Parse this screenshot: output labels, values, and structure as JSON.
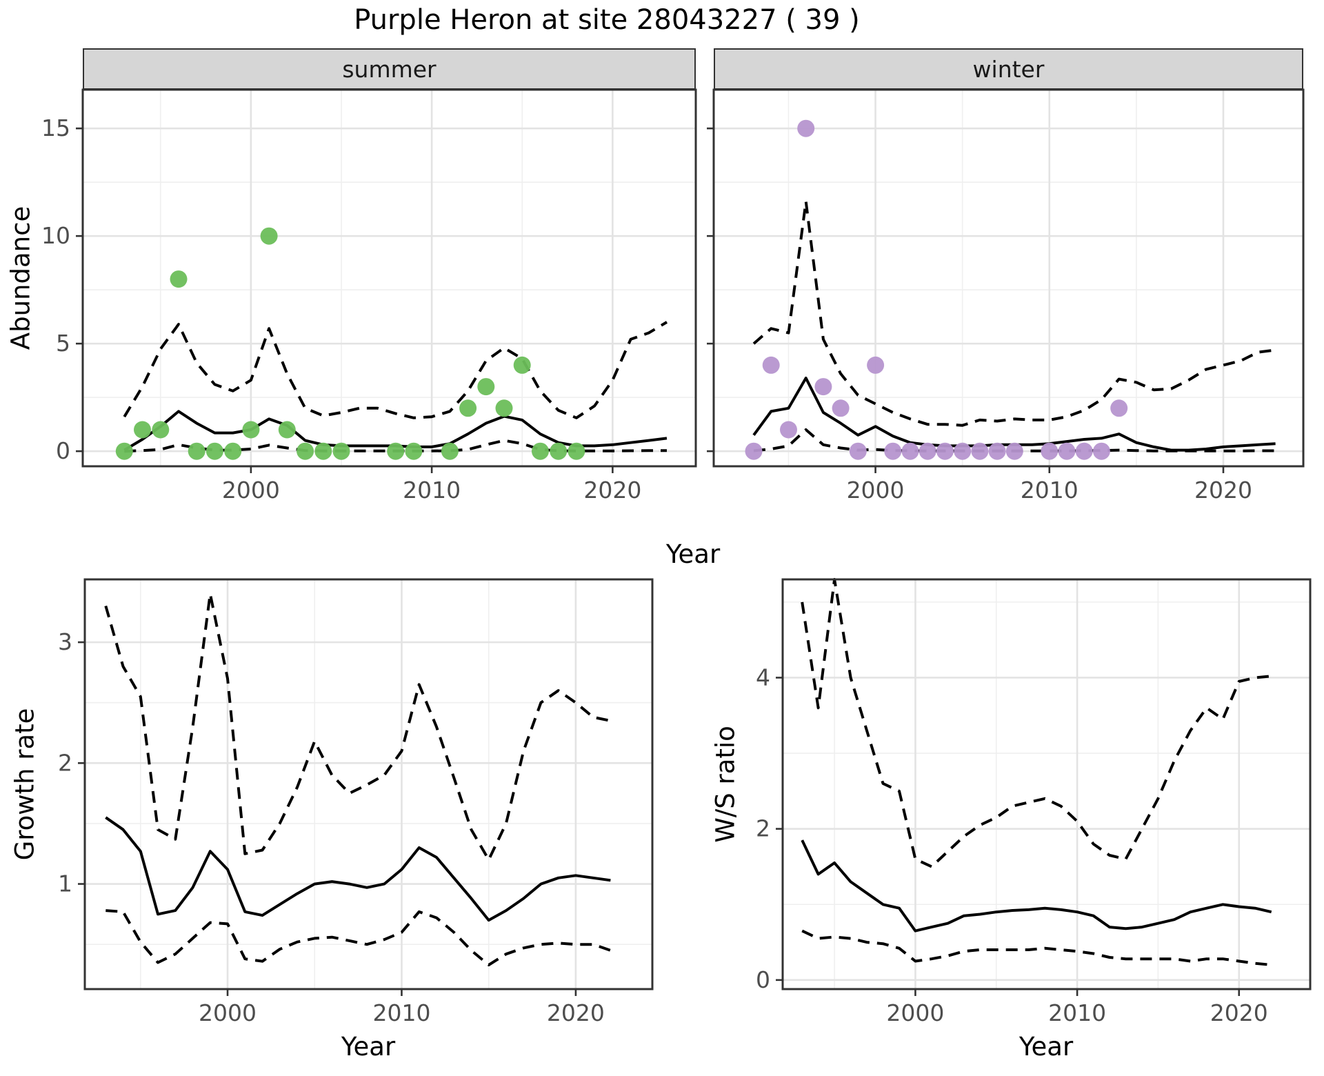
{
  "title": "Purple Heron at site 28043227 ( 39 )",
  "labels": {
    "facet_summer": "summer",
    "facet_winter": "winter",
    "abundance_y": "Abundance",
    "top_x": "Year",
    "growth_y": "Growth rate",
    "growth_x": "Year",
    "ws_y": "W/S ratio",
    "ws_x": "Year"
  },
  "colors": {
    "summer_point": "#6CBE5A",
    "winter_point": "#B695CF",
    "line": "#000000",
    "grid_major": "#e3e3e3",
    "grid_minor": "#efefef",
    "panel_border": "#333333",
    "tick_label": "#4d4d4d",
    "strip_bg": "#d6d6d6"
  },
  "chart_data": [
    {
      "id": "abundance-summer",
      "type": "line",
      "title": "summer",
      "xlabel": "Year",
      "ylabel": "Abundance",
      "xlim": [
        1990.7,
        2024.6
      ],
      "ylim": [
        -0.7,
        16.8
      ],
      "xticks": [
        2000,
        2010,
        2020
      ],
      "xminor": [
        1995,
        2005,
        2015
      ],
      "yticks": [
        0,
        5,
        10,
        15
      ],
      "yminor": [
        2.5,
        7.5,
        12.5
      ],
      "show_y_tick_labels": true,
      "years": [
        1993,
        1994,
        1995,
        1996,
        1997,
        1998,
        1999,
        2000,
        2001,
        2002,
        2003,
        2004,
        2005,
        2006,
        2007,
        2008,
        2009,
        2010,
        2011,
        2012,
        2013,
        2014,
        2015,
        2016,
        2017,
        2018,
        2019,
        2020,
        2021,
        2022,
        2023
      ],
      "series": [
        {
          "name": "fit",
          "style": "solid",
          "values": [
            0.05,
            0.55,
            1.15,
            1.85,
            1.3,
            0.85,
            0.85,
            1.0,
            1.5,
            1.2,
            0.5,
            0.3,
            0.25,
            0.25,
            0.25,
            0.25,
            0.2,
            0.2,
            0.35,
            0.8,
            1.3,
            1.62,
            1.45,
            0.8,
            0.4,
            0.25,
            0.25,
            0.3,
            0.4,
            0.5,
            0.6
          ]
        },
        {
          "name": "upper_ci",
          "style": "dashed",
          "values": [
            1.6,
            3.0,
            4.75,
            5.9,
            4.1,
            3.1,
            2.8,
            3.3,
            5.7,
            3.6,
            2.0,
            1.65,
            1.8,
            2.0,
            2.0,
            1.75,
            1.55,
            1.6,
            1.85,
            2.8,
            4.2,
            4.8,
            4.3,
            2.8,
            1.9,
            1.55,
            2.1,
            3.3,
            5.2,
            5.5,
            6.0
          ]
        },
        {
          "name": "lower_ci",
          "style": "dashed",
          "values": [
            0.0,
            0.03,
            0.08,
            0.3,
            0.15,
            0.05,
            0.05,
            0.1,
            0.28,
            0.15,
            0.03,
            0.01,
            0.01,
            0.01,
            0.01,
            0.01,
            0.01,
            0.01,
            0.02,
            0.08,
            0.3,
            0.5,
            0.35,
            0.08,
            0.02,
            0.01,
            0.01,
            0.01,
            0.02,
            0.03,
            0.03
          ]
        }
      ],
      "points": {
        "name": "summer-observations",
        "color": "#6CBE5A",
        "x": [
          1993,
          1994,
          1995,
          1996,
          1997,
          1998,
          1999,
          2000,
          2001,
          2002,
          2003,
          2004,
          2005,
          2008,
          2009,
          2011,
          2012,
          2013,
          2014,
          2015,
          2016,
          2017,
          2018
        ],
        "y": [
          0,
          1,
          1,
          8,
          0,
          0,
          0,
          1,
          10,
          1,
          0,
          0,
          0,
          0,
          0,
          0,
          2,
          3,
          2,
          4,
          0,
          0,
          0
        ]
      }
    },
    {
      "id": "abundance-winter",
      "type": "line",
      "title": "winter",
      "xlabel": "Year",
      "ylabel": "Abundance",
      "xlim": [
        1990.7,
        2024.6
      ],
      "ylim": [
        -0.7,
        16.8
      ],
      "xticks": [
        2000,
        2010,
        2020
      ],
      "xminor": [
        1995,
        2005,
        2015
      ],
      "yticks": [
        0,
        5,
        10,
        15
      ],
      "yminor": [
        2.5,
        7.5,
        12.5
      ],
      "show_y_tick_labels": false,
      "years": [
        1993,
        1994,
        1995,
        1996,
        1997,
        1998,
        1999,
        2000,
        2001,
        2002,
        2003,
        2004,
        2005,
        2006,
        2007,
        2008,
        2009,
        2010,
        2011,
        2012,
        2013,
        2014,
        2015,
        2016,
        2017,
        2018,
        2019,
        2020,
        2021,
        2022,
        2023
      ],
      "series": [
        {
          "name": "fit",
          "style": "solid",
          "values": [
            0.75,
            1.85,
            2.0,
            3.4,
            1.8,
            1.3,
            0.75,
            1.15,
            0.7,
            0.4,
            0.3,
            0.25,
            0.25,
            0.25,
            0.3,
            0.3,
            0.3,
            0.35,
            0.45,
            0.55,
            0.6,
            0.8,
            0.4,
            0.2,
            0.05,
            0.05,
            0.1,
            0.2,
            0.25,
            0.3,
            0.35
          ]
        },
        {
          "name": "upper_ci",
          "style": "dashed",
          "values": [
            5.0,
            5.7,
            5.5,
            11.6,
            5.2,
            3.6,
            2.6,
            2.2,
            1.8,
            1.5,
            1.25,
            1.25,
            1.2,
            1.45,
            1.4,
            1.5,
            1.45,
            1.45,
            1.6,
            1.9,
            2.4,
            3.35,
            3.2,
            2.85,
            2.9,
            3.3,
            3.8,
            4.0,
            4.2,
            4.6,
            4.7
          ]
        },
        {
          "name": "lower_ci",
          "style": "dashed",
          "values": [
            0.02,
            0.1,
            0.25,
            1.0,
            0.3,
            0.15,
            0.05,
            0.08,
            0.03,
            0.02,
            0.01,
            0.01,
            0.01,
            0.01,
            0.01,
            0.01,
            0.01,
            0.01,
            0.01,
            0.02,
            0.03,
            0.05,
            0.03,
            0.01,
            0.01,
            0.01,
            0.01,
            0.01,
            0.01,
            0.02,
            0.02
          ]
        }
      ],
      "points": {
        "name": "winter-observations",
        "color": "#B695CF",
        "x": [
          1993,
          1994,
          1995,
          1996,
          1997,
          1998,
          1999,
          2000,
          2001,
          2002,
          2003,
          2004,
          2005,
          2006,
          2007,
          2008,
          2010,
          2011,
          2012,
          2013,
          2014
        ],
        "y": [
          0,
          4,
          1,
          15,
          3,
          2,
          0,
          4,
          0,
          0,
          0,
          0,
          0,
          0,
          0,
          0,
          0,
          0,
          0,
          0,
          2
        ]
      }
    },
    {
      "id": "growth-rate",
      "type": "line",
      "title": "",
      "xlabel": "Year",
      "ylabel": "Growth rate",
      "xlim": [
        1991.8,
        2024.4
      ],
      "ylim": [
        0.13,
        3.52
      ],
      "xticks": [
        2000,
        2010,
        2020
      ],
      "xminor": [
        1995,
        2005,
        2015
      ],
      "yticks": [
        1,
        2,
        3
      ],
      "yminor": [
        0.5,
        1.5,
        2.5
      ],
      "show_y_tick_labels": true,
      "years": [
        1993,
        1994,
        1995,
        1996,
        1997,
        1998,
        1999,
        2000,
        2001,
        2002,
        2003,
        2004,
        2005,
        2006,
        2007,
        2008,
        2009,
        2010,
        2011,
        2012,
        2013,
        2014,
        2015,
        2016,
        2017,
        2018,
        2019,
        2020,
        2021,
        2022
      ],
      "series": [
        {
          "name": "fit",
          "style": "solid",
          "values": [
            1.55,
            1.45,
            1.27,
            0.75,
            0.78,
            0.97,
            1.27,
            1.12,
            0.77,
            0.74,
            0.83,
            0.92,
            1.0,
            1.02,
            1.0,
            0.97,
            1.0,
            1.12,
            1.3,
            1.22,
            1.05,
            0.88,
            0.7,
            0.78,
            0.88,
            1.0,
            1.05,
            1.07,
            1.05,
            1.03
          ]
        },
        {
          "name": "upper_ci",
          "style": "dashed",
          "values": [
            3.3,
            2.8,
            2.55,
            1.45,
            1.37,
            2.3,
            3.4,
            2.7,
            1.25,
            1.28,
            1.5,
            1.8,
            2.18,
            1.9,
            1.75,
            1.82,
            1.9,
            2.1,
            2.65,
            2.3,
            1.88,
            1.45,
            1.2,
            1.5,
            2.1,
            2.5,
            2.6,
            2.5,
            2.38,
            2.35
          ]
        },
        {
          "name": "lower_ci",
          "style": "dashed",
          "values": [
            0.78,
            0.77,
            0.52,
            0.35,
            0.42,
            0.55,
            0.68,
            0.67,
            0.38,
            0.36,
            0.46,
            0.52,
            0.55,
            0.56,
            0.53,
            0.5,
            0.54,
            0.6,
            0.77,
            0.72,
            0.6,
            0.45,
            0.33,
            0.42,
            0.47,
            0.5,
            0.51,
            0.5,
            0.5,
            0.45
          ]
        }
      ],
      "points": null
    },
    {
      "id": "ws-ratio",
      "type": "line",
      "title": "",
      "xlabel": "Year",
      "ylabel": "W/S ratio",
      "xlim": [
        1991.8,
        2024.4
      ],
      "ylim": [
        -0.12,
        5.3
      ],
      "xticks": [
        2000,
        2010,
        2020
      ],
      "xminor": [
        1995,
        2005,
        2015
      ],
      "yticks": [
        0,
        2,
        4
      ],
      "yminor": [
        1,
        3,
        5
      ],
      "show_y_tick_labels": true,
      "years": [
        1993,
        1994,
        1995,
        1996,
        1997,
        1998,
        1999,
        2000,
        2001,
        2002,
        2003,
        2004,
        2005,
        2006,
        2007,
        2008,
        2009,
        2010,
        2011,
        2012,
        2013,
        2014,
        2015,
        2016,
        2017,
        2018,
        2019,
        2020,
        2021,
        2022
      ],
      "series": [
        {
          "name": "fit",
          "style": "solid",
          "values": [
            1.85,
            1.4,
            1.55,
            1.3,
            1.15,
            1.0,
            0.95,
            0.65,
            0.7,
            0.75,
            0.85,
            0.87,
            0.9,
            0.92,
            0.93,
            0.95,
            0.93,
            0.9,
            0.85,
            0.7,
            0.68,
            0.7,
            0.75,
            0.8,
            0.9,
            0.95,
            1.0,
            0.97,
            0.95,
            0.9
          ]
        },
        {
          "name": "upper_ci",
          "style": "dashed",
          "values": [
            5.0,
            3.6,
            5.3,
            4.0,
            3.3,
            2.6,
            2.5,
            1.6,
            1.5,
            1.7,
            1.9,
            2.05,
            2.15,
            2.3,
            2.35,
            2.4,
            2.3,
            2.1,
            1.8,
            1.65,
            1.6,
            2.0,
            2.4,
            2.9,
            3.3,
            3.6,
            3.45,
            3.95,
            4.0,
            4.02
          ]
        },
        {
          "name": "lower_ci",
          "style": "dashed",
          "values": [
            0.65,
            0.55,
            0.57,
            0.55,
            0.5,
            0.48,
            0.42,
            0.25,
            0.28,
            0.32,
            0.38,
            0.4,
            0.4,
            0.4,
            0.4,
            0.42,
            0.4,
            0.38,
            0.35,
            0.3,
            0.28,
            0.28,
            0.28,
            0.28,
            0.25,
            0.28,
            0.28,
            0.25,
            0.22,
            0.2
          ]
        }
      ],
      "points": null
    }
  ]
}
